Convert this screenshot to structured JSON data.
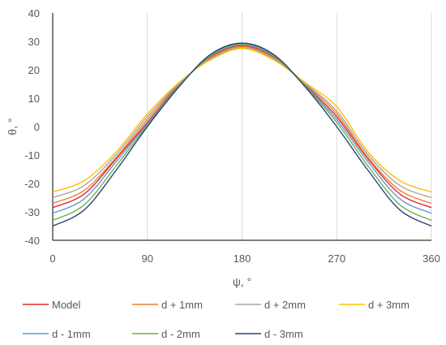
{
  "chart_data": {
    "type": "line",
    "title": "",
    "xlabel": "ψ, °",
    "ylabel": "θ, °",
    "xlim": [
      0,
      360
    ],
    "ylim": [
      -40,
      40
    ],
    "xticks": [
      0,
      90,
      180,
      270,
      360
    ],
    "yticks": [
      -40,
      -30,
      -20,
      -10,
      0,
      10,
      20,
      30,
      40
    ],
    "grid": "vertical",
    "legend_position": "bottom",
    "x": [
      0,
      30,
      60,
      90,
      120,
      150,
      180,
      210,
      240,
      270,
      300,
      330,
      360
    ],
    "series": [
      {
        "name": "Model",
        "color": "#e8262c",
        "values": [
          -28.5,
          -23.7,
          -11.5,
          1.5,
          14.6,
          24.5,
          28.5,
          24.5,
          14.6,
          3.5,
          -11.5,
          -23.7,
          -28.5
        ]
      },
      {
        "name": "d + 1mm",
        "color": "#ed7d31",
        "values": [
          -27.0,
          -22.4,
          -11.0,
          2.5,
          15.0,
          24.2,
          28.2,
          24.2,
          15.0,
          4.5,
          -11.0,
          -22.4,
          -27.0
        ]
      },
      {
        "name": "d + 2mm",
        "color": "#a5a5a5",
        "values": [
          -25.0,
          -20.7,
          -10.0,
          3.5,
          15.2,
          23.8,
          27.8,
          23.8,
          15.2,
          5.5,
          -10.0,
          -20.7,
          -25.0
        ]
      },
      {
        "name": "d + 3mm",
        "color": "#ffc000",
        "values": [
          -23.0,
          -19.0,
          -9.0,
          4.5,
          15.5,
          23.5,
          27.5,
          23.5,
          15.5,
          7.0,
          -9.0,
          -19.0,
          -23.0
        ]
      },
      {
        "name": "d - 1mm",
        "color": "#5b9bd5",
        "values": [
          -30.5,
          -25.4,
          -12.5,
          1.0,
          14.4,
          24.8,
          28.8,
          24.8,
          14.4,
          2.5,
          -12.5,
          -25.4,
          -30.5
        ]
      },
      {
        "name": "d - 2mm",
        "color": "#70ad47",
        "values": [
          -33.0,
          -27.5,
          -14.0,
          0.5,
          14.2,
          25.1,
          29.1,
          25.1,
          14.2,
          1.5,
          -14.0,
          -27.5,
          -33.0
        ]
      },
      {
        "name": "d - 3mm",
        "color": "#264478",
        "values": [
          -35.0,
          -29.3,
          -15.5,
          0.0,
          14.0,
          25.4,
          29.4,
          25.4,
          14.0,
          0.0,
          -15.5,
          -29.3,
          -35.0
        ]
      }
    ]
  }
}
